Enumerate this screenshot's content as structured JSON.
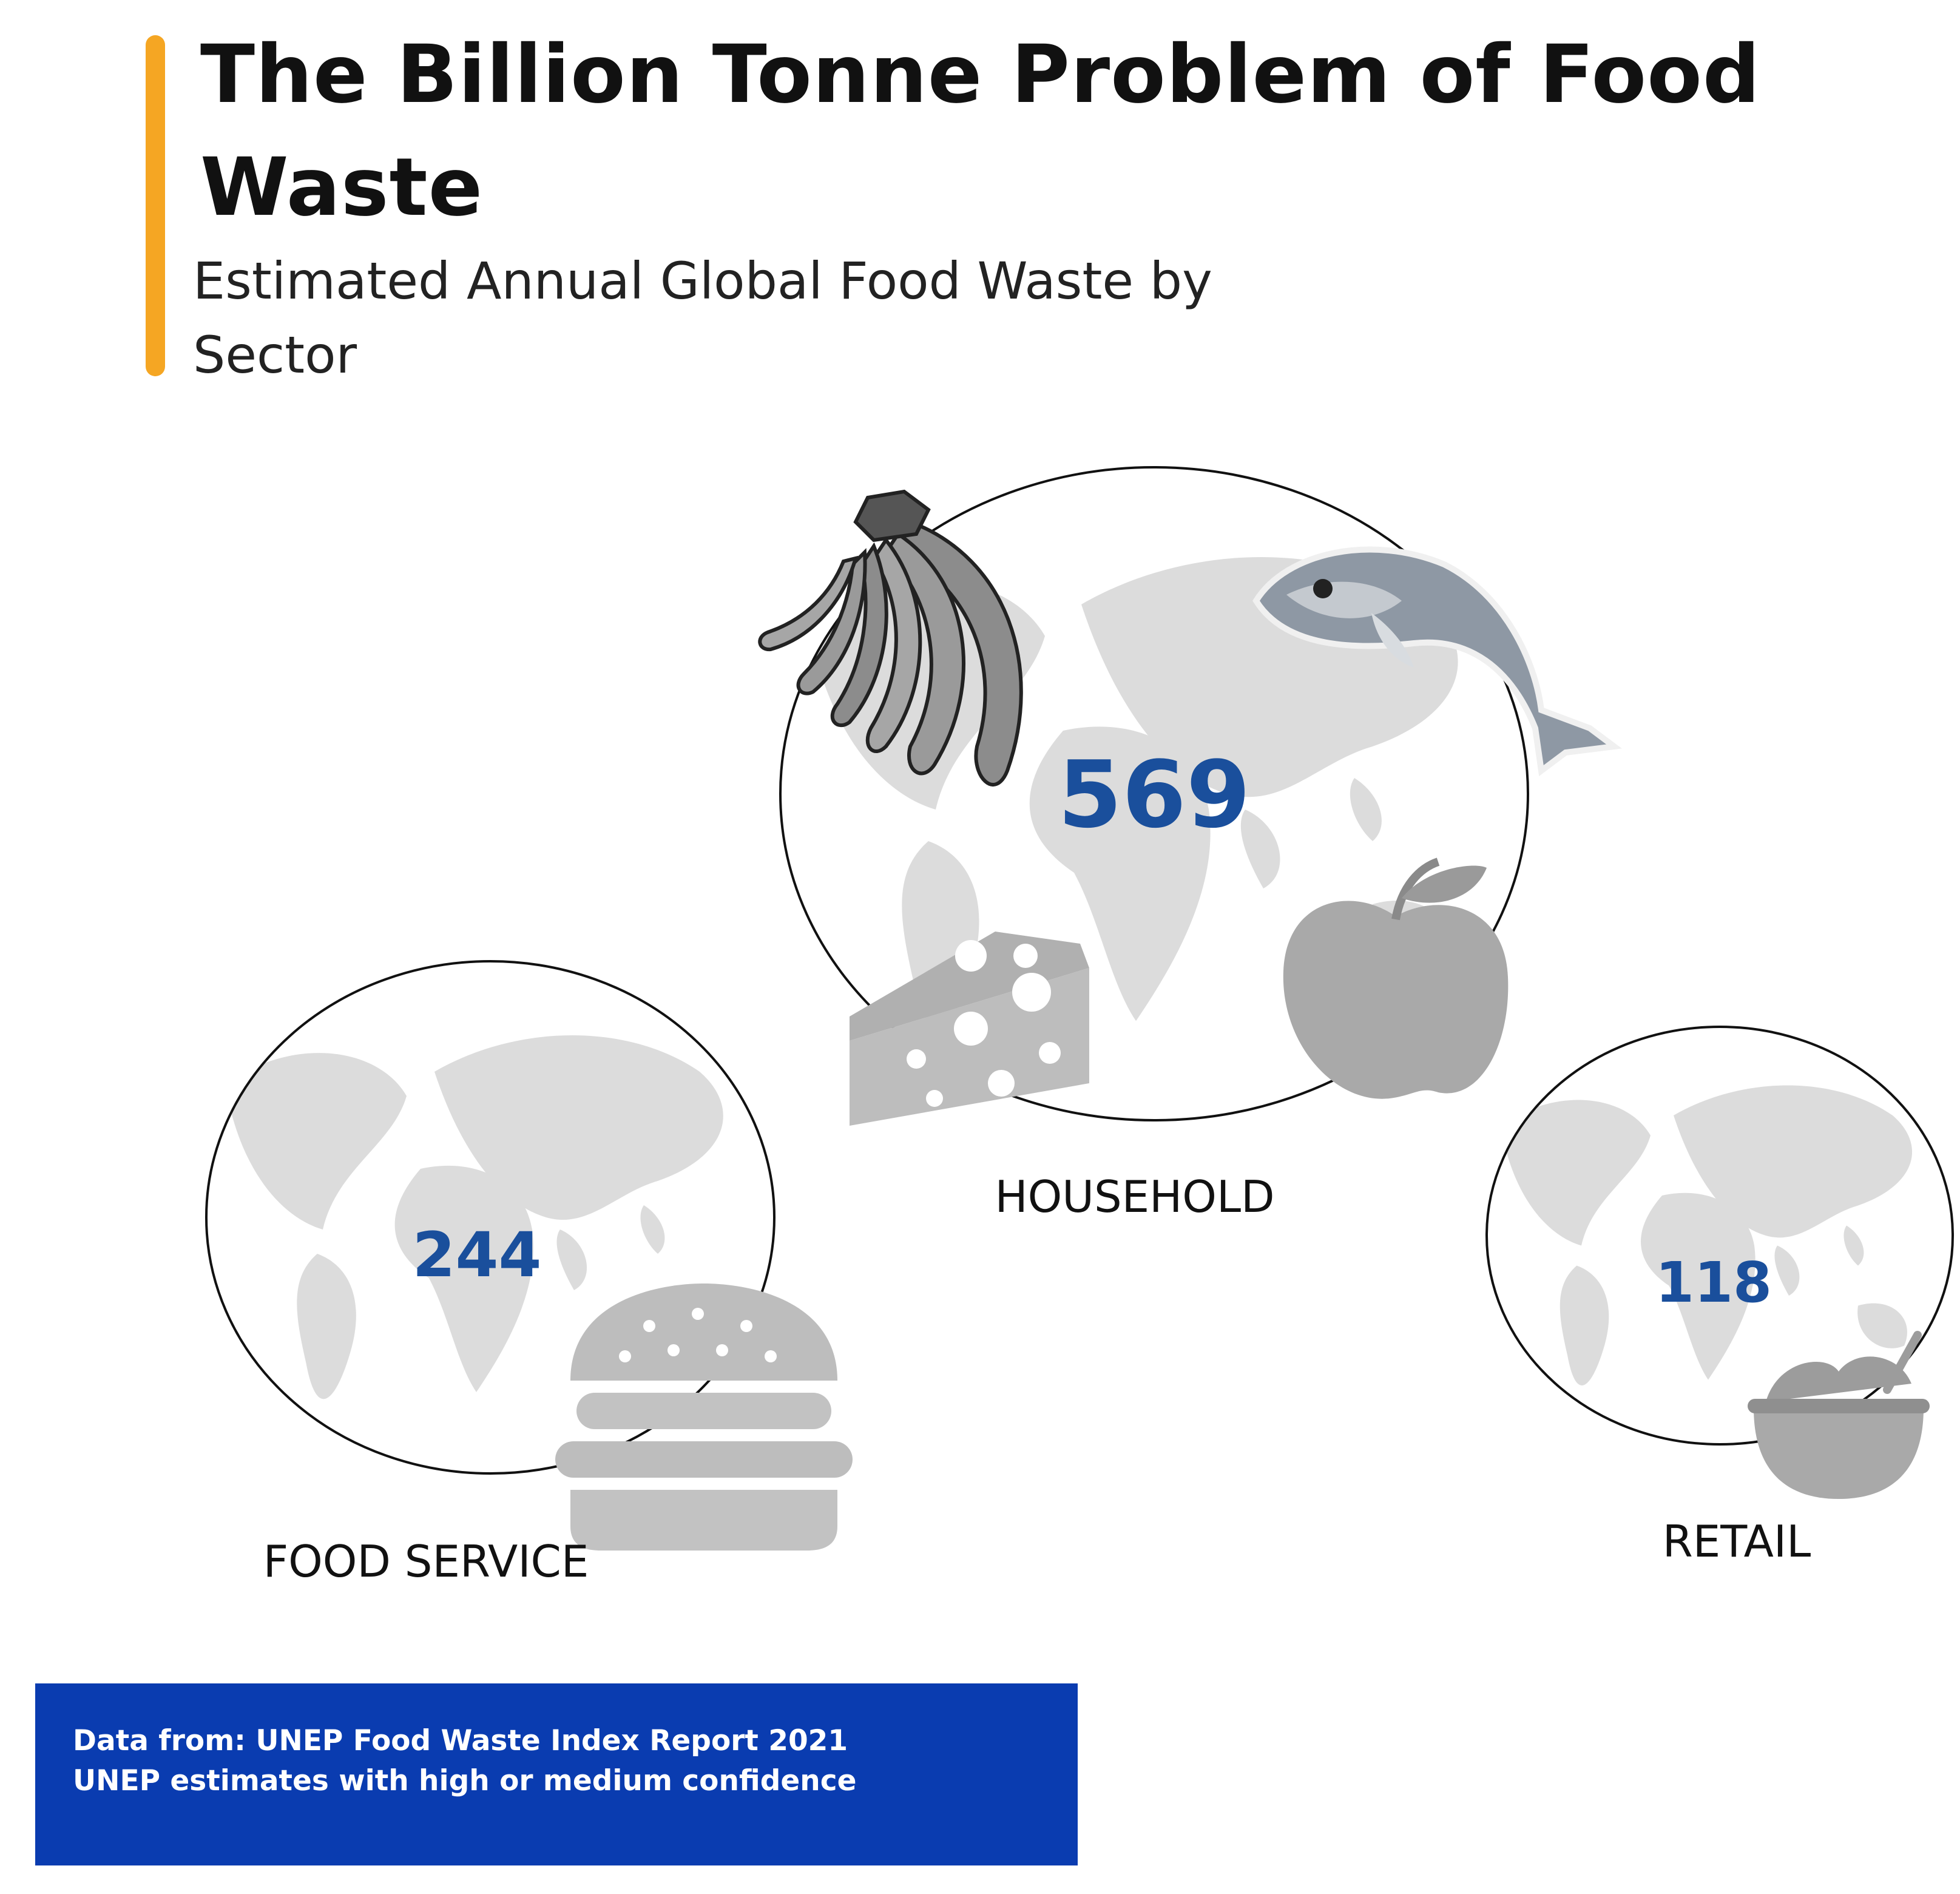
{
  "header": {
    "title": "The Billion Tonne Problem of Food Waste",
    "subtitle": "Estimated Annual Global Food Waste by Sector",
    "accent_color": "#F5A623"
  },
  "chart_data": {
    "type": "bubble",
    "title": "The Billion Tonne Problem of Food Waste",
    "subtitle": "Estimated Annual Global Food Waste by Sector",
    "categories": [
      "HOUSEHOLD",
      "FOOD SERVICE",
      "RETAIL"
    ],
    "values": [
      569,
      244,
      118
    ],
    "icons": [
      [
        "banana-icon",
        "fish-icon",
        "cheese-icon",
        "apple-icon"
      ],
      [
        "burger-icon"
      ],
      [
        "bowl-icon"
      ]
    ],
    "value_color": "#1A4F9C",
    "legend": "none",
    "grid": false
  },
  "footer": {
    "source_lines": [
      "Data from: UNEP Food Waste Index Report 2021",
      "UNEP estimates with high or medium confidence"
    ],
    "box_color": "#0A3CB0"
  }
}
